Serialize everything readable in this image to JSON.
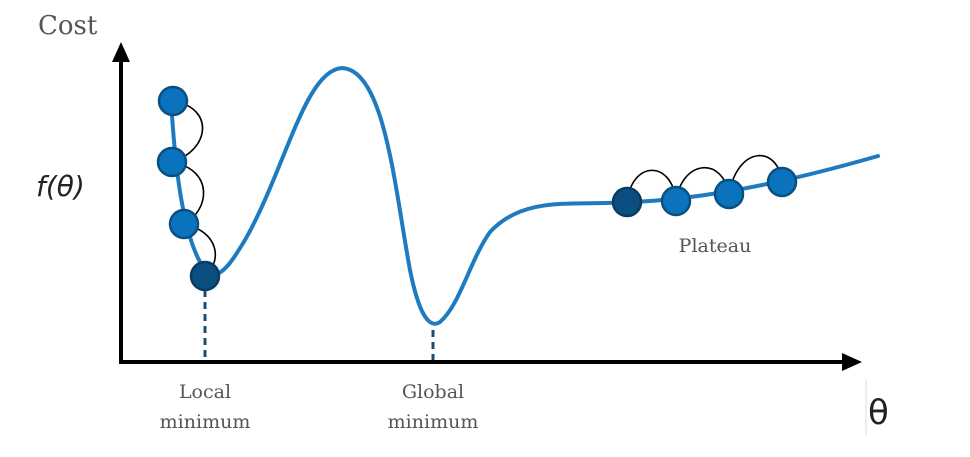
{
  "axes": {
    "y_label": "Cost",
    "y_func_label": "f(θ)",
    "x_label": "θ"
  },
  "annotations": {
    "local_minimum": [
      "Local",
      "minimum"
    ],
    "global_minimum": [
      "Global",
      "minimum"
    ],
    "plateau": "Plateau"
  },
  "colors": {
    "curve": "#1f7bbf",
    "point": "#0b73bd",
    "point_stroke": "#0a4f80",
    "point_active": "#0a4f80",
    "axis": "#000000",
    "hop": "#000000",
    "dashed_marker": "#1b4f72"
  },
  "steps": {
    "descent_points": 4,
    "plateau_points": 4
  }
}
